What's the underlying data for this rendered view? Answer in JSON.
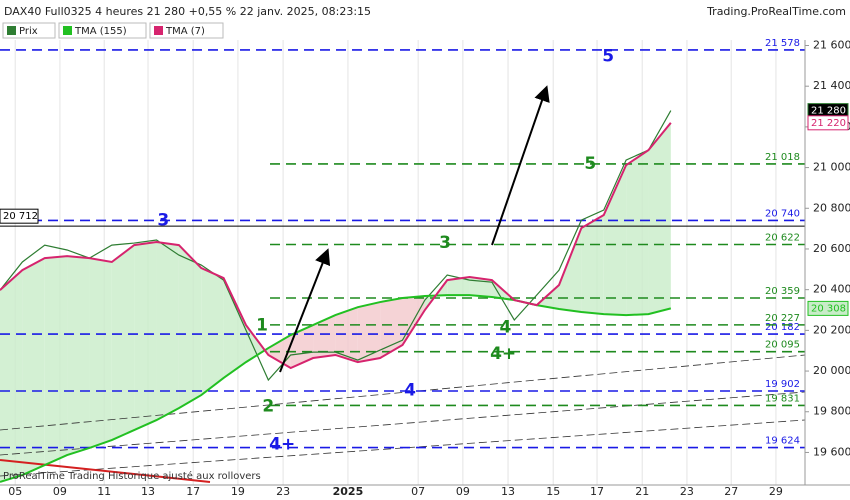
{
  "header": {
    "title": "DAX40 Full0325 4 heures 21 280 +0,55 % 22 janv. 2025, 08:23:15",
    "site": "Trading.ProRealTime.com"
  },
  "footer": "ProRealTime Trading Historique ajusté aux rollovers",
  "chart_data": {
    "type": "line",
    "x": [
      0,
      5,
      10,
      15,
      20,
      25,
      30,
      35,
      40,
      45,
      50,
      55,
      60,
      65,
      70,
      75,
      80,
      85,
      90,
      95,
      100,
      105,
      110,
      115,
      120,
      125,
      130,
      135,
      140,
      145,
      150
    ],
    "series": [
      {
        "name": "Prix",
        "color": "#2e7d32",
        "last_label": "21 280",
        "values": [
          20398,
          20536,
          20619,
          20595,
          20555,
          20619,
          20629,
          20644,
          20570,
          20521,
          20447,
          20201,
          19956,
          20079,
          20093,
          20093,
          20054,
          20103,
          20152,
          20349,
          20472,
          20447,
          20437,
          20251,
          20373,
          20496,
          20742,
          20791,
          21037,
          21086,
          21280
        ]
      },
      {
        "name": "TMA (155)",
        "color": "#22c022",
        "last_label": "20 308",
        "values": [
          19455,
          19489,
          19538,
          19587,
          19622,
          19661,
          19710,
          19759,
          19818,
          19882,
          19966,
          20044,
          20113,
          20177,
          20226,
          20275,
          20314,
          20339,
          20359,
          20369,
          20373,
          20373,
          20364,
          20349,
          20324,
          20305,
          20290,
          20280,
          20275,
          20280,
          20308
        ]
      },
      {
        "name": "TMA (7)",
        "color": "#d6246e",
        "last_label": "21 220",
        "values": [
          20398,
          20496,
          20555,
          20565,
          20555,
          20536,
          20619,
          20634,
          20619,
          20506,
          20457,
          20226,
          20079,
          20015,
          20064,
          20079,
          20044,
          20064,
          20128,
          20300,
          20447,
          20462,
          20447,
          20349,
          20324,
          20423,
          20703,
          20767,
          21012,
          21086,
          21220
        ]
      }
    ],
    "xlim": [
      0,
      180
    ],
    "xticks": [
      {
        "value": 3.4,
        "label": "05"
      },
      {
        "value": 13.4,
        "label": "09"
      },
      {
        "value": 23.3,
        "label": "11"
      },
      {
        "value": 33.1,
        "label": "13"
      },
      {
        "value": 43.2,
        "label": "17"
      },
      {
        "value": 53.2,
        "label": "19"
      },
      {
        "value": 63.3,
        "label": "23"
      },
      {
        "value": 77.8,
        "label": "2025"
      },
      {
        "value": 93.5,
        "label": "07"
      },
      {
        "value": 103.5,
        "label": "09"
      },
      {
        "value": 113.6,
        "label": "13"
      },
      {
        "value": 123.7,
        "label": "15"
      },
      {
        "value": 133.5,
        "label": "17"
      },
      {
        "value": 143.6,
        "label": "21"
      },
      {
        "value": 153.6,
        "label": "23"
      },
      {
        "value": 163.5,
        "label": "27"
      },
      {
        "value": 173.5,
        "label": "29"
      }
    ],
    "ylim": [
      19440,
      21627
    ],
    "yticks": [
      {
        "value": 19600,
        "label": "19 600"
      },
      {
        "value": 19800,
        "label": "19 800"
      },
      {
        "value": 20000,
        "label": "20 000"
      },
      {
        "value": 20200,
        "label": "20 200"
      },
      {
        "value": 20400,
        "label": "20 400"
      },
      {
        "value": 20600,
        "label": "20 600"
      },
      {
        "value": 20800,
        "label": "20 800"
      },
      {
        "value": 21000,
        "label": "21 000"
      },
      {
        "value": 21200,
        "label": "21 200"
      },
      {
        "value": 21400,
        "label": "21 400"
      },
      {
        "value": 21600,
        "label": "21 600"
      }
    ],
    "grid": true,
    "levels": [
      {
        "value": 21578,
        "label": "21 578",
        "color": "#1a1ae6"
      },
      {
        "value": 20740,
        "label": "20 740",
        "color": "#1a1ae6"
      },
      {
        "value": 20182,
        "label": "20 182",
        "color": "#1a1ae6"
      },
      {
        "value": 19902,
        "label": "19 902",
        "color": "#1a1ae6"
      },
      {
        "value": 19624,
        "label": "19 624",
        "color": "#1a1ae6"
      },
      {
        "value": 21018,
        "label": "21 018",
        "color": "#1e8a1e"
      },
      {
        "value": 20622,
        "label": "20 622",
        "color": "#1e8a1e"
      },
      {
        "value": 20359,
        "label": "20 359",
        "color": "#1e8a1e"
      },
      {
        "value": 20227,
        "label": "20 227",
        "color": "#1e8a1e"
      },
      {
        "value": 20095,
        "label": "20 095",
        "color": "#1e8a1e"
      },
      {
        "value": 19831,
        "label": "19 831",
        "color": "#1e8a1e"
      }
    ],
    "reference_line": {
      "value": 20712,
      "label": "20 712"
    },
    "annotations": [
      {
        "text": "5",
        "x": 136,
        "y": 21545,
        "color": "#1a1ae6"
      },
      {
        "text": "3",
        "x": 36.5,
        "y": 20740,
        "color": "#1a1ae6"
      },
      {
        "text": "4",
        "x": 91.7,
        "y": 19905,
        "color": "#1a1ae6"
      },
      {
        "text": "4+",
        "x": 63.1,
        "y": 19640,
        "color": "#1a1ae6"
      },
      {
        "text": "1",
        "x": 58.6,
        "y": 20225,
        "color": "#1e8a1e"
      },
      {
        "text": "2",
        "x": 60,
        "y": 19825,
        "color": "#1e8a1e"
      },
      {
        "text": "3",
        "x": 99.5,
        "y": 20630,
        "color": "#1e8a1e"
      },
      {
        "text": "4",
        "x": 113,
        "y": 20215,
        "color": "#1e8a1e"
      },
      {
        "text": "4+",
        "x": 112.5,
        "y": 20085,
        "color": "#1e8a1e"
      },
      {
        "text": "5",
        "x": 132,
        "y": 21018,
        "color": "#1e8a1e"
      }
    ]
  }
}
